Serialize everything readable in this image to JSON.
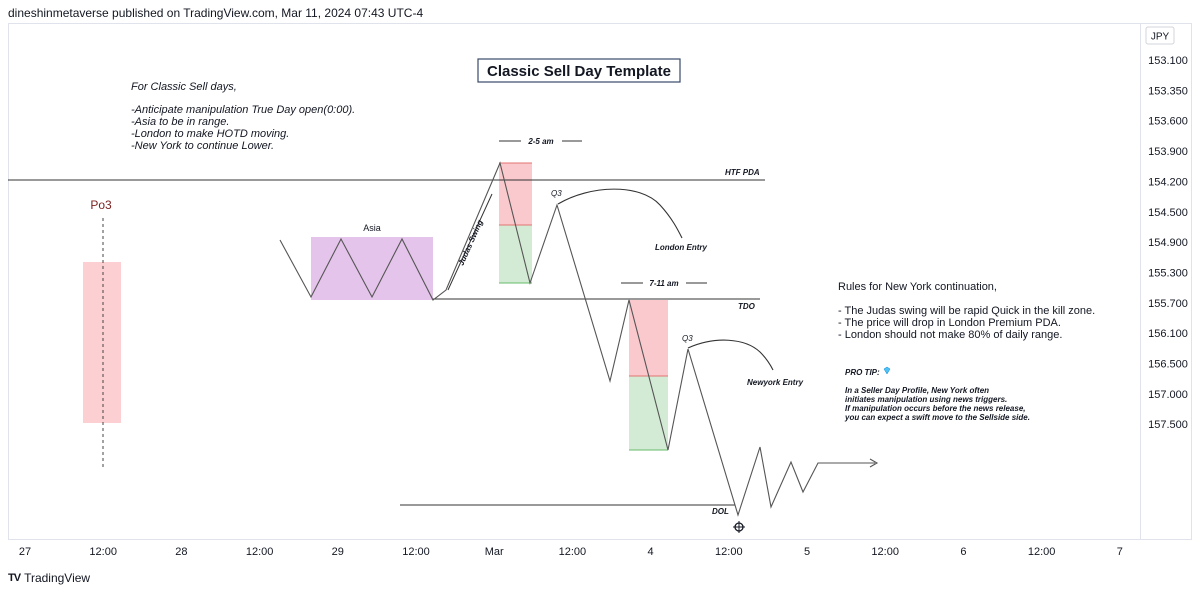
{
  "header": {
    "published_by": "dineshinmetaverse published on TradingView.com, Mar 11, 2024 07:43 UTC-4"
  },
  "footer": {
    "brand": "TradingView"
  },
  "chart_data": {
    "type": "line",
    "title": "Classic Sell Day Template",
    "currency": "JPY",
    "y_axis": {
      "ticks": [
        "153.100",
        "153.350",
        "153.600",
        "153.900",
        "154.200",
        "154.500",
        "154.900",
        "155.300",
        "155.700",
        "156.100",
        "156.500",
        "157.000",
        "157.500"
      ]
    },
    "x_axis": {
      "ticks": [
        "27",
        "12:00",
        "28",
        "12:00",
        "29",
        "12:00",
        "Mar",
        "12:00",
        "4",
        "12:00",
        "5",
        "12:00",
        "6",
        "12:00",
        "7"
      ]
    },
    "notes": {
      "sell_days_title": "For Classic Sell days,",
      "sell_days_lines": [
        "-Anticipate manipulation True Day open(0:00).",
        "-Asia to be in range.",
        "-London to make HOTD moving.",
        "-New York to continue Lower."
      ],
      "ny_rules_title": "Rules for New York continuation,",
      "ny_rules_lines": [
        "- The Judas swing will be rapid Quick in the kill zone.",
        "- The price will drop in London Premium PDA.",
        "- London should not make 80% of daily range."
      ],
      "pro_tip_title": "PRO TIP:",
      "pro_tip_lines": [
        "In a Seller Day Profile, New York often",
        "initiates manipulation using news triggers.",
        "If manipulation occurs before the news release,",
        "you can expect a swift move to the Sellside side."
      ]
    },
    "labels": {
      "po3": "Po3",
      "asia": "Asia",
      "judas": "Judas Swing",
      "time1": "2-5 am",
      "time2": "7-11 am",
      "htf_pda": "HTF PDA",
      "tdo": "TDO",
      "dol": "DOL",
      "q3_1": "Q3",
      "q3_2": "Q3",
      "london_entry": "London Entry",
      "newyork_entry": "Newyork Entry"
    },
    "colors": {
      "line": "#555555",
      "asia_box": "#ce93d8",
      "premium_box": "#f8bbc0",
      "discount_box": "#c8e6c9",
      "po3_box": "#fcc8cb",
      "po3_text": "#7b1f1f",
      "diamond": "#4fc3f7"
    }
  }
}
